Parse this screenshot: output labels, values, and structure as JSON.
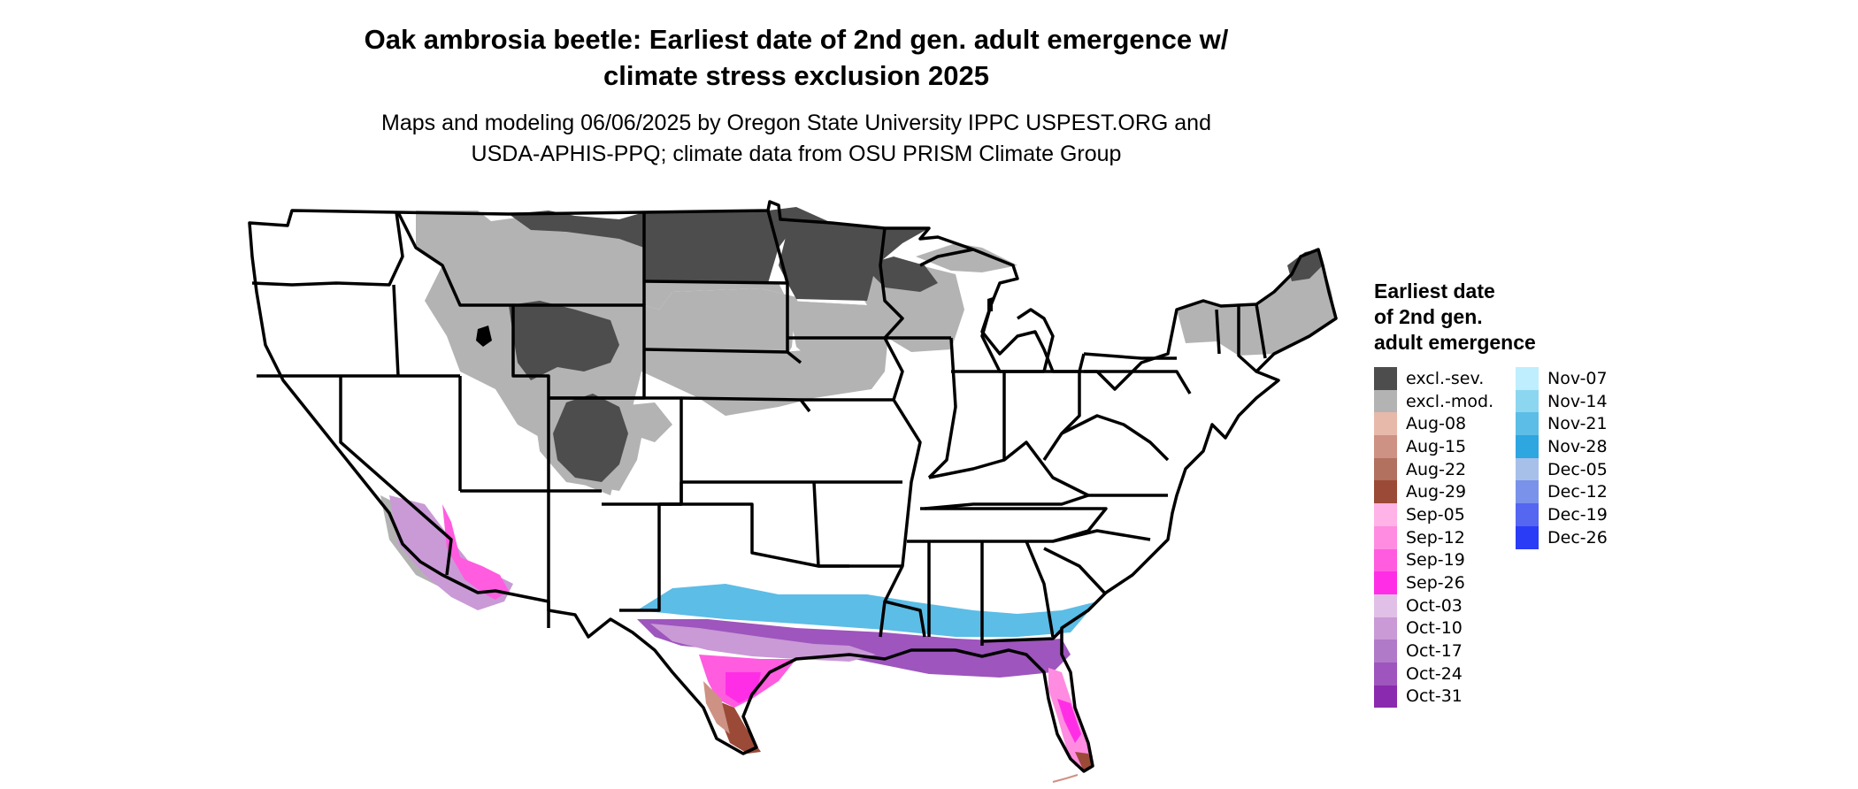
{
  "title_line1": "Oak ambrosia beetle: Earliest date of 2nd gen. adult emergence w/",
  "title_line2": "climate stress exclusion 2025",
  "subtitle_line1": "Maps and modeling 06/06/2025 by Oregon State University IPPC USPEST.ORG and",
  "subtitle_line2": "USDA-APHIS-PPQ; climate data from OSU PRISM Climate Group",
  "legend": {
    "title_line1": "Earliest date",
    "title_line2": "of 2nd gen.",
    "title_line3": "adult emergence",
    "items": [
      {
        "label": "excl.-sev.",
        "color": "#4d4d4d"
      },
      {
        "label": "excl.-mod.",
        "color": "#b3b3b3"
      },
      {
        "label": "Aug-08",
        "color": "#e6b9ab"
      },
      {
        "label": "Aug-15",
        "color": "#cd9283"
      },
      {
        "label": "Aug-22",
        "color": "#b2705f"
      },
      {
        "label": "Aug-29",
        "color": "#9b4a37"
      },
      {
        "label": "Sep-05",
        "color": "#ffb3e6"
      },
      {
        "label": "Sep-12",
        "color": "#ff8ce0"
      },
      {
        "label": "Sep-19",
        "color": "#ff5ce0"
      },
      {
        "label": "Sep-26",
        "color": "#ff2ee6"
      },
      {
        "label": "Oct-03",
        "color": "#e0c0e6"
      },
      {
        "label": "Oct-10",
        "color": "#c99ad6"
      },
      {
        "label": "Oct-17",
        "color": "#b07ac8"
      },
      {
        "label": "Oct-24",
        "color": "#9e55bd"
      },
      {
        "label": "Oct-31",
        "color": "#8a2aae"
      },
      {
        "label": "Nov-07",
        "color": "#bfeeff"
      },
      {
        "label": "Nov-14",
        "color": "#8cd6f0"
      },
      {
        "label": "Nov-21",
        "color": "#5cbde6"
      },
      {
        "label": "Nov-28",
        "color": "#2ea6e0"
      },
      {
        "label": "Dec-05",
        "color": "#a6c0ea"
      },
      {
        "label": "Dec-12",
        "color": "#7a92ea"
      },
      {
        "label": "Dec-19",
        "color": "#5566f0"
      },
      {
        "label": "Dec-26",
        "color": "#2a3cf5"
      }
    ]
  }
}
